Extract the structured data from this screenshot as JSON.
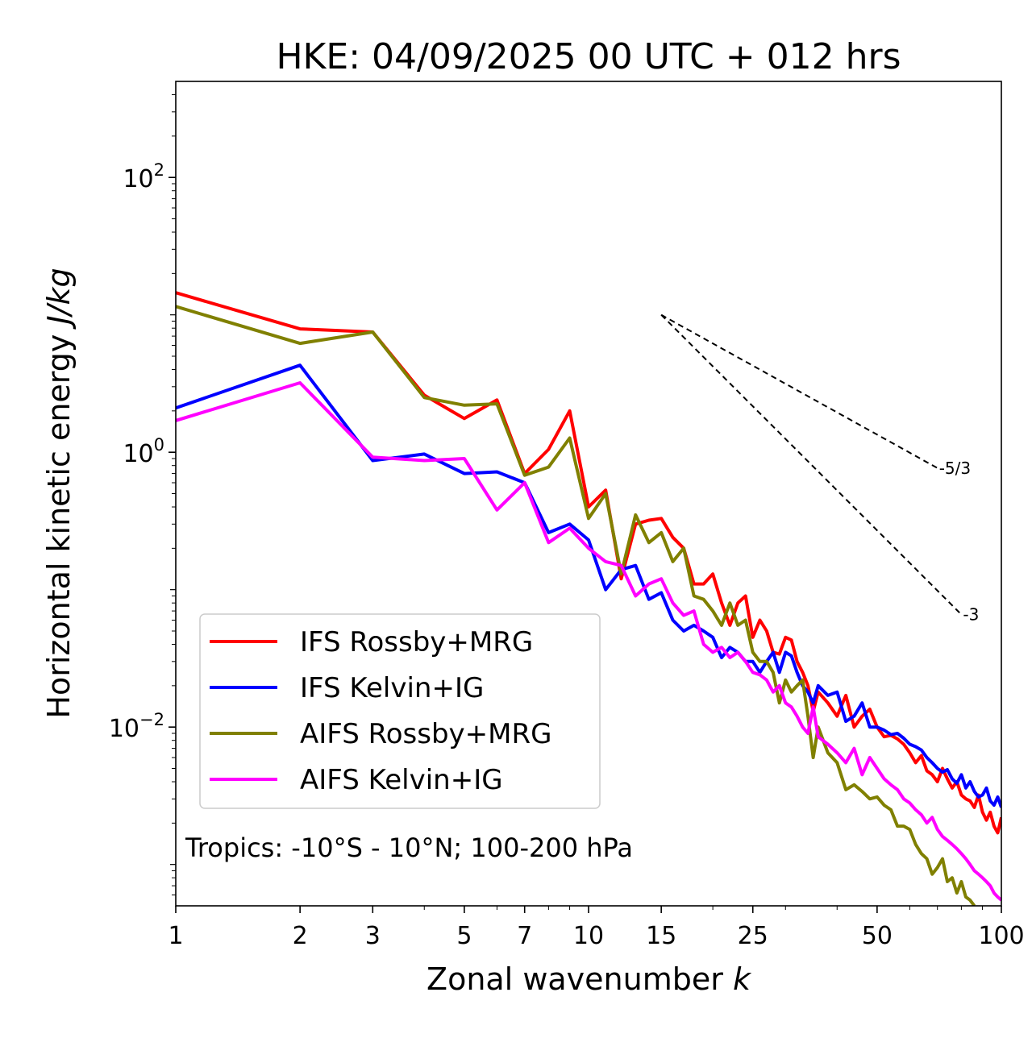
{
  "chart_data": {
    "type": "line",
    "title": "HKE: 04/09/2025 00 UTC + 012 hrs",
    "xlabel_text": "Zonal wavenumber ",
    "xlabel_var": "k",
    "ylabel_text": "Horizontal kinetic energy ",
    "ylabel_unit": "J/kg",
    "xscale": "log",
    "yscale": "log",
    "xlim": [
      1,
      100
    ],
    "ylim": [
      0.0005,
      500
    ],
    "x_ticks": [
      {
        "value": 1,
        "label": "1"
      },
      {
        "value": 2,
        "label": "2"
      },
      {
        "value": 3,
        "label": "3"
      },
      {
        "value": 5,
        "label": "5"
      },
      {
        "value": 7,
        "label": "7"
      },
      {
        "value": 10,
        "label": "10"
      },
      {
        "value": 15,
        "label": "15"
      },
      {
        "value": 25,
        "label": "25"
      },
      {
        "value": 50,
        "label": "50"
      },
      {
        "value": 100,
        "label": "100"
      }
    ],
    "y_ticks": [
      {
        "value": 100,
        "base": "10",
        "exp": "2"
      },
      {
        "value": 1,
        "base": "10",
        "exp": "0"
      },
      {
        "value": 0.01,
        "base": "10",
        "exp": "−2"
      }
    ],
    "annotation": "Tropics: -10°S - 10°N; 100-200 hPa",
    "legend_position": "lower-left",
    "reference_slopes": [
      {
        "label": "-5/3",
        "slope": -1.6667,
        "x": [
          15,
          70
        ],
        "y0": 10.0
      },
      {
        "label": "-3",
        "slope": -3,
        "x": [
          15,
          80
        ],
        "y0": 10.0
      }
    ],
    "series": [
      {
        "name": "IFS Rossby+MRG",
        "color": "#ff0000",
        "points": [
          [
            1,
            14.5
          ],
          [
            2,
            7.9
          ],
          [
            3,
            7.5
          ],
          [
            4,
            2.6
          ],
          [
            5,
            1.76
          ],
          [
            6,
            2.4
          ],
          [
            7,
            0.7
          ],
          [
            8,
            1.05
          ],
          [
            9,
            2.0
          ],
          [
            10,
            0.4
          ],
          [
            11,
            0.53
          ],
          [
            12,
            0.12
          ],
          [
            13,
            0.3
          ],
          [
            14,
            0.32
          ],
          [
            15,
            0.33
          ],
          [
            16,
            0.24
          ],
          [
            17,
            0.2
          ],
          [
            18,
            0.11
          ],
          [
            19,
            0.11
          ],
          [
            20,
            0.13
          ],
          [
            21,
            0.08
          ],
          [
            22,
            0.055
          ],
          [
            23,
            0.08
          ],
          [
            24,
            0.09
          ],
          [
            25,
            0.045
          ],
          [
            26,
            0.06
          ],
          [
            27,
            0.05
          ],
          [
            28,
            0.035
          ],
          [
            29,
            0.034
          ],
          [
            30,
            0.045
          ],
          [
            31,
            0.043
          ],
          [
            32,
            0.03
          ],
          [
            33,
            0.025
          ],
          [
            34,
            0.02
          ],
          [
            35,
            0.013
          ],
          [
            36,
            0.018
          ],
          [
            38,
            0.015
          ],
          [
            40,
            0.012
          ],
          [
            42,
            0.017
          ],
          [
            44,
            0.01
          ],
          [
            46,
            0.012
          ],
          [
            48,
            0.0135
          ],
          [
            50,
            0.01
          ],
          [
            52,
            0.0085
          ],
          [
            54,
            0.0087
          ],
          [
            56,
            0.0082
          ],
          [
            58,
            0.0075
          ],
          [
            60,
            0.0065
          ],
          [
            62,
            0.0055
          ],
          [
            64,
            0.0062
          ],
          [
            66,
            0.0048
          ],
          [
            68,
            0.0045
          ],
          [
            70,
            0.004
          ],
          [
            72,
            0.005
          ],
          [
            74,
            0.0042
          ],
          [
            76,
            0.0036
          ],
          [
            78,
            0.004
          ],
          [
            80,
            0.0032
          ],
          [
            82,
            0.003
          ],
          [
            84,
            0.0029
          ],
          [
            86,
            0.0026
          ],
          [
            88,
            0.0032
          ],
          [
            90,
            0.0024
          ],
          [
            92,
            0.0021
          ],
          [
            94,
            0.0024
          ],
          [
            96,
            0.0019
          ],
          [
            98,
            0.0017
          ],
          [
            100,
            0.0022
          ]
        ]
      },
      {
        "name": "IFS Kelvin+IG",
        "color": "#0000ff",
        "points": [
          [
            1,
            2.1
          ],
          [
            2,
            4.3
          ],
          [
            3,
            0.87
          ],
          [
            4,
            0.97
          ],
          [
            5,
            0.7
          ],
          [
            6,
            0.72
          ],
          [
            7,
            0.6
          ],
          [
            8,
            0.26
          ],
          [
            9,
            0.3
          ],
          [
            10,
            0.23
          ],
          [
            11,
            0.1
          ],
          [
            12,
            0.14
          ],
          [
            13,
            0.15
          ],
          [
            14,
            0.085
          ],
          [
            15,
            0.095
          ],
          [
            16,
            0.06
          ],
          [
            17,
            0.05
          ],
          [
            18,
            0.055
          ],
          [
            19,
            0.05
          ],
          [
            20,
            0.045
          ],
          [
            21,
            0.032
          ],
          [
            22,
            0.038
          ],
          [
            23,
            0.035
          ],
          [
            24,
            0.03
          ],
          [
            25,
            0.03
          ],
          [
            26,
            0.025
          ],
          [
            27,
            0.03
          ],
          [
            28,
            0.035
          ],
          [
            29,
            0.025
          ],
          [
            30,
            0.035
          ],
          [
            31,
            0.033
          ],
          [
            32,
            0.025
          ],
          [
            33,
            0.02
          ],
          [
            34,
            0.018
          ],
          [
            35,
            0.015
          ],
          [
            36,
            0.02
          ],
          [
            38,
            0.017
          ],
          [
            40,
            0.018
          ],
          [
            42,
            0.011
          ],
          [
            44,
            0.012
          ],
          [
            46,
            0.015
          ],
          [
            48,
            0.01
          ],
          [
            50,
            0.01
          ],
          [
            52,
            0.0095
          ],
          [
            54,
            0.0088
          ],
          [
            56,
            0.009
          ],
          [
            58,
            0.0083
          ],
          [
            60,
            0.0075
          ],
          [
            62,
            0.0072
          ],
          [
            64,
            0.0068
          ],
          [
            66,
            0.006
          ],
          [
            68,
            0.0055
          ],
          [
            70,
            0.005
          ],
          [
            72,
            0.0047
          ],
          [
            74,
            0.0049
          ],
          [
            76,
            0.0042
          ],
          [
            78,
            0.0039
          ],
          [
            80,
            0.0045
          ],
          [
            82,
            0.0036
          ],
          [
            84,
            0.004
          ],
          [
            86,
            0.0034
          ],
          [
            88,
            0.0031
          ],
          [
            90,
            0.0032
          ],
          [
            92,
            0.0036
          ],
          [
            94,
            0.0029
          ],
          [
            96,
            0.0027
          ],
          [
            98,
            0.0031
          ],
          [
            100,
            0.0026
          ]
        ]
      },
      {
        "name": "AIFS Rossby+MRG",
        "color": "#808000",
        "points": [
          [
            1,
            11.5
          ],
          [
            2,
            6.2
          ],
          [
            3,
            7.5
          ],
          [
            4,
            2.5
          ],
          [
            5,
            2.2
          ],
          [
            6,
            2.25
          ],
          [
            7,
            0.68
          ],
          [
            8,
            0.78
          ],
          [
            9,
            1.27
          ],
          [
            10,
            0.33
          ],
          [
            11,
            0.5
          ],
          [
            12,
            0.13
          ],
          [
            13,
            0.35
          ],
          [
            14,
            0.22
          ],
          [
            15,
            0.26
          ],
          [
            16,
            0.16
          ],
          [
            17,
            0.2
          ],
          [
            18,
            0.09
          ],
          [
            19,
            0.085
          ],
          [
            20,
            0.07
          ],
          [
            21,
            0.055
          ],
          [
            22,
            0.08
          ],
          [
            23,
            0.055
          ],
          [
            24,
            0.06
          ],
          [
            25,
            0.035
          ],
          [
            26,
            0.03
          ],
          [
            27,
            0.03
          ],
          [
            28,
            0.025
          ],
          [
            29,
            0.015
          ],
          [
            30,
            0.022
          ],
          [
            31,
            0.018
          ],
          [
            32,
            0.02
          ],
          [
            33,
            0.022
          ],
          [
            34,
            0.012
          ],
          [
            35,
            0.006
          ],
          [
            36,
            0.01
          ],
          [
            38,
            0.0065
          ],
          [
            40,
            0.0055
          ],
          [
            42,
            0.0035
          ],
          [
            44,
            0.0038
          ],
          [
            46,
            0.0034
          ],
          [
            48,
            0.003
          ],
          [
            50,
            0.0031
          ],
          [
            52,
            0.0027
          ],
          [
            54,
            0.0025
          ],
          [
            56,
            0.0019
          ],
          [
            58,
            0.0019
          ],
          [
            60,
            0.0018
          ],
          [
            62,
            0.0014
          ],
          [
            64,
            0.0012
          ],
          [
            66,
            0.0011
          ],
          [
            68,
            0.00085
          ],
          [
            70,
            0.00095
          ],
          [
            72,
            0.0011
          ],
          [
            74,
            0.00075
          ],
          [
            76,
            0.0008
          ],
          [
            78,
            0.00062
          ],
          [
            80,
            0.00075
          ],
          [
            82,
            0.00058
          ],
          [
            84,
            0.00055
          ],
          [
            86,
            0.0005
          ]
        ]
      },
      {
        "name": "AIFS Kelvin+IG",
        "color": "#ff00ff",
        "points": [
          [
            1,
            1.7
          ],
          [
            2,
            3.2
          ],
          [
            3,
            0.92
          ],
          [
            4,
            0.87
          ],
          [
            5,
            0.9
          ],
          [
            6,
            0.38
          ],
          [
            7,
            0.6
          ],
          [
            8,
            0.22
          ],
          [
            9,
            0.28
          ],
          [
            10,
            0.2
          ],
          [
            11,
            0.16
          ],
          [
            12,
            0.15
          ],
          [
            13,
            0.09
          ],
          [
            14,
            0.11
          ],
          [
            15,
            0.12
          ],
          [
            16,
            0.08
          ],
          [
            17,
            0.065
          ],
          [
            18,
            0.07
          ],
          [
            19,
            0.04
          ],
          [
            20,
            0.035
          ],
          [
            21,
            0.038
          ],
          [
            22,
            0.032
          ],
          [
            23,
            0.035
          ],
          [
            24,
            0.03
          ],
          [
            25,
            0.025
          ],
          [
            26,
            0.024
          ],
          [
            27,
            0.022
          ],
          [
            28,
            0.018
          ],
          [
            29,
            0.02
          ],
          [
            30,
            0.015
          ],
          [
            31,
            0.014
          ],
          [
            32,
            0.012
          ],
          [
            33,
            0.01
          ],
          [
            34,
            0.009
          ],
          [
            35,
            0.014
          ],
          [
            36,
            0.0085
          ],
          [
            38,
            0.0075
          ],
          [
            40,
            0.0065
          ],
          [
            42,
            0.0055
          ],
          [
            44,
            0.007
          ],
          [
            46,
            0.0045
          ],
          [
            48,
            0.006
          ],
          [
            50,
            0.005
          ],
          [
            52,
            0.0042
          ],
          [
            54,
            0.0038
          ],
          [
            56,
            0.0035
          ],
          [
            58,
            0.003
          ],
          [
            60,
            0.0028
          ],
          [
            62,
            0.0025
          ],
          [
            64,
            0.0023
          ],
          [
            66,
            0.002
          ],
          [
            68,
            0.0022
          ],
          [
            70,
            0.0018
          ],
          [
            72,
            0.0016
          ],
          [
            74,
            0.0015
          ],
          [
            76,
            0.0014
          ],
          [
            78,
            0.0013
          ],
          [
            80,
            0.0012
          ],
          [
            82,
            0.0011
          ],
          [
            84,
            0.001
          ],
          [
            86,
            0.0009
          ],
          [
            88,
            0.00085
          ],
          [
            90,
            0.0008
          ],
          [
            92,
            0.00075
          ],
          [
            94,
            0.0007
          ],
          [
            96,
            0.00062
          ],
          [
            98,
            0.00058
          ],
          [
            100,
            0.00055
          ]
        ]
      }
    ]
  }
}
